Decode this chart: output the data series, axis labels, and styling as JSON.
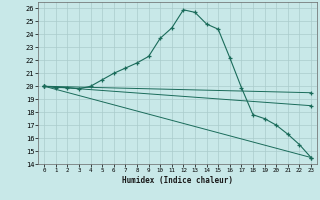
{
  "xlabel": "Humidex (Indice chaleur)",
  "background_color": "#c8e8e8",
  "grid_color": "#aacccc",
  "line_color": "#1a6b5a",
  "xlim": [
    -0.5,
    23.5
  ],
  "ylim": [
    14,
    26.5
  ],
  "yticks": [
    14,
    15,
    16,
    17,
    18,
    19,
    20,
    21,
    22,
    23,
    24,
    25,
    26
  ],
  "xticks": [
    0,
    1,
    2,
    3,
    4,
    5,
    6,
    7,
    8,
    9,
    10,
    11,
    12,
    13,
    14,
    15,
    16,
    17,
    18,
    19,
    20,
    21,
    22,
    23
  ],
  "series": [
    {
      "x": [
        0,
        1,
        2,
        3,
        4,
        5,
        6,
        7,
        8,
        9,
        10,
        11,
        12,
        13,
        14,
        15,
        16,
        17,
        18,
        19,
        20,
        21,
        22,
        23
      ],
      "y": [
        20.0,
        19.9,
        19.9,
        19.8,
        20.0,
        20.5,
        21.0,
        21.4,
        21.8,
        22.3,
        23.7,
        24.5,
        25.9,
        25.7,
        24.8,
        24.4,
        22.2,
        19.9,
        17.8,
        17.5,
        17.0,
        16.3,
        15.5,
        14.5
      ]
    },
    {
      "x": [
        0,
        23
      ],
      "y": [
        20.0,
        19.5
      ]
    },
    {
      "x": [
        0,
        23
      ],
      "y": [
        20.0,
        18.5
      ]
    },
    {
      "x": [
        0,
        23
      ],
      "y": [
        20.0,
        14.5
      ]
    }
  ]
}
